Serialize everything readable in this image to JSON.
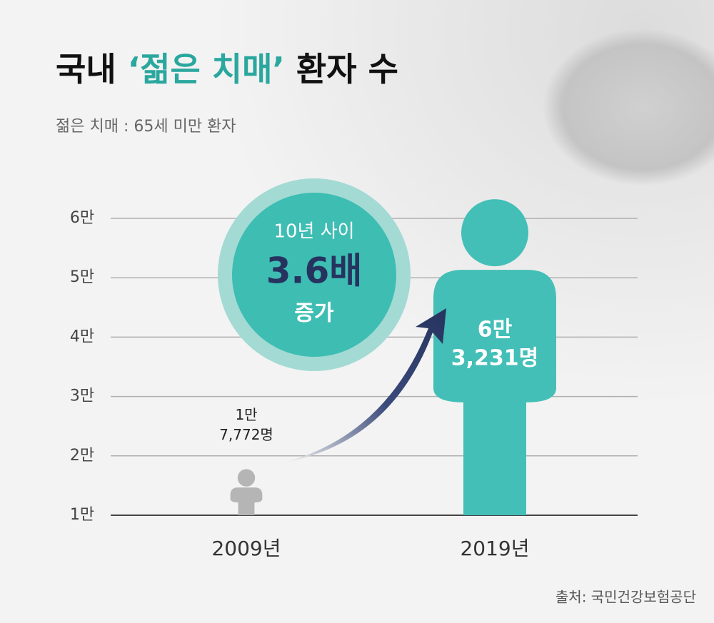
{
  "chart_data": {
    "type": "person",
    "title": [
      "국내 ",
      "‘젊은 치매’",
      " 환자 수"
    ],
    "title_colors": [
      "#111111",
      "#2aa79e",
      "#111111"
    ],
    "subtitle": "젊은 치매 : 65세 미만 환자",
    "categories": [
      "2009년",
      "2019년"
    ],
    "values": [
      17772,
      63231
    ],
    "value_labels": [
      [
        "1만",
        "7,772명"
      ],
      [
        "6만",
        "3,231명"
      ]
    ],
    "colors": [
      "#b5b5b5",
      "#43bfb7"
    ],
    "ylim": [
      10000,
      60000
    ],
    "yticks": [
      {
        "value": 10000,
        "label": "1만"
      },
      {
        "value": 20000,
        "label": "2만"
      },
      {
        "value": 30000,
        "label": "3만"
      },
      {
        "value": 40000,
        "label": "4만"
      },
      {
        "value": 50000,
        "label": "5만"
      },
      {
        "value": 60000,
        "label": "6만"
      }
    ],
    "grid": true,
    "annotation": [
      "10년 사이",
      "3.6배",
      "증가"
    ],
    "source": "출처: 국민건강보험공단"
  }
}
